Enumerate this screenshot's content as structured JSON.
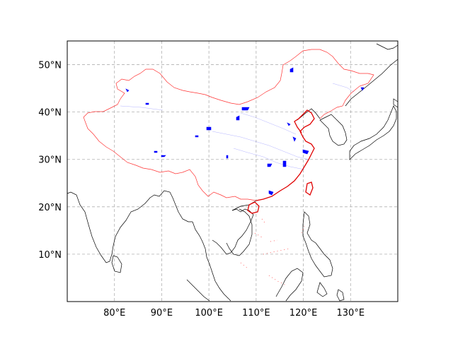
{
  "map": {
    "projection": "PlateCarree",
    "extent": {
      "lon": [
        70,
        140
      ],
      "lat": [
        0,
        55
      ]
    },
    "gridlines": {
      "style": "dashed",
      "color": "#b0b0b0",
      "visible": true
    },
    "x_ticks": [
      {
        "lon": 80,
        "label": "80°E"
      },
      {
        "lon": 90,
        "label": "90°E"
      },
      {
        "lon": 100,
        "label": "100°E"
      },
      {
        "lon": 110,
        "label": "110°E"
      },
      {
        "lon": 120,
        "label": "120°E"
      },
      {
        "lon": 130,
        "label": "130°E"
      }
    ],
    "y_ticks": [
      {
        "lat": 10,
        "label": "10°N"
      },
      {
        "lat": 20,
        "label": "20°N"
      },
      {
        "lat": 30,
        "label": "30°N"
      },
      {
        "lat": 40,
        "label": "40°N"
      },
      {
        "lat": 50,
        "label": "50°N"
      }
    ],
    "colors": {
      "coastline": "#000000",
      "china_border": "#ff3333",
      "china_coast": "#e00000",
      "water": "#0000ff"
    }
  }
}
